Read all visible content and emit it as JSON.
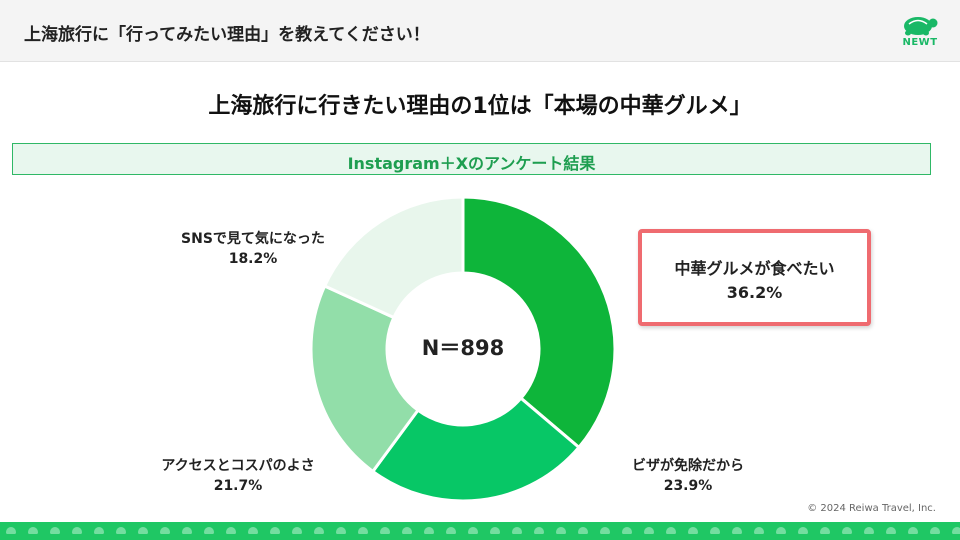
{
  "header": {
    "title": "上海旅行に「行ってみたい理由」を教えてください！",
    "logo_text": "NEWT"
  },
  "headline": "上海旅行に行きたい理由の1位は「本場の中華グルメ」",
  "subtitle": "Instagram＋Xのアンケート結果",
  "chart_data": {
    "type": "pie",
    "variant": "donut",
    "center_label": "N＝898",
    "slices": [
      {
        "name": "中華グルメが食べたい",
        "label": "36.2%",
        "value": 36.2,
        "color": "#0eb53a"
      },
      {
        "name": "ビザが免除だから",
        "label": "23.9%",
        "value": 23.9,
        "color": "#07c766"
      },
      {
        "name": "アクセスとコスパのよさ",
        "label": "21.7%",
        "value": 21.7,
        "color": "#92dea9"
      },
      {
        "name": "SNSで見て気になった",
        "label": "18.2%",
        "value": 18.2,
        "color": "#e8f6ec"
      }
    ],
    "highlight": "中華グルメが食べたい"
  },
  "footer": {
    "copyright": "© 2024 Reiwa Travel, Inc."
  }
}
